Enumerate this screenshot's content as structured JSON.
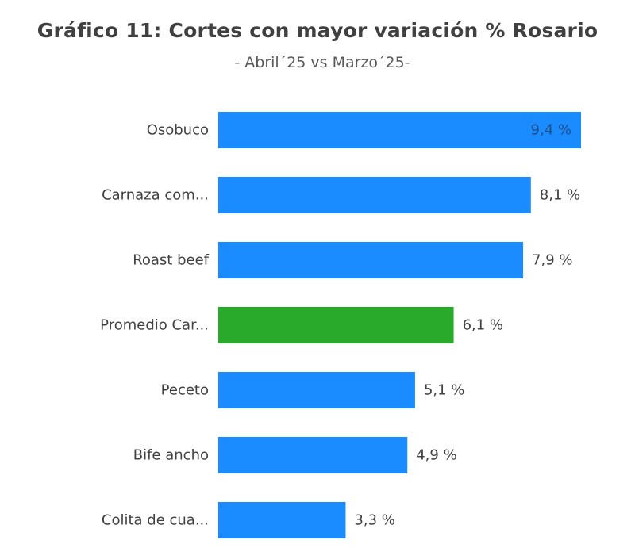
{
  "chart_data": {
    "type": "bar",
    "orientation": "horizontal",
    "title": "Gráfico 11: Cortes con mayor variación % Rosario",
    "subtitle": "- Abril´25 vs Marzo´25-",
    "categories": [
      "Osobuco",
      "Carnaza com...",
      "Roast beef",
      "Promedio Car...",
      "Peceto",
      "Bife ancho",
      "Colita de cua..."
    ],
    "values": [
      9.4,
      8.1,
      7.9,
      6.1,
      5.1,
      4.9,
      3.3
    ],
    "data_labels": [
      "9,4 %",
      "8,1 %",
      "7,9 %",
      "6,1 %",
      "5,1 %",
      "4,9 %",
      "3,3 %"
    ],
    "highlight_category": "Promedio Car...",
    "xlim": [
      0,
      9.4
    ],
    "grid": false,
    "legend": "none",
    "colors": {
      "bar": "#1A8CFF",
      "highlight": "#2AAA2A",
      "label": "#404040",
      "value_label_inside": "#1F4E8C",
      "value_label_outside": "#404040"
    }
  }
}
